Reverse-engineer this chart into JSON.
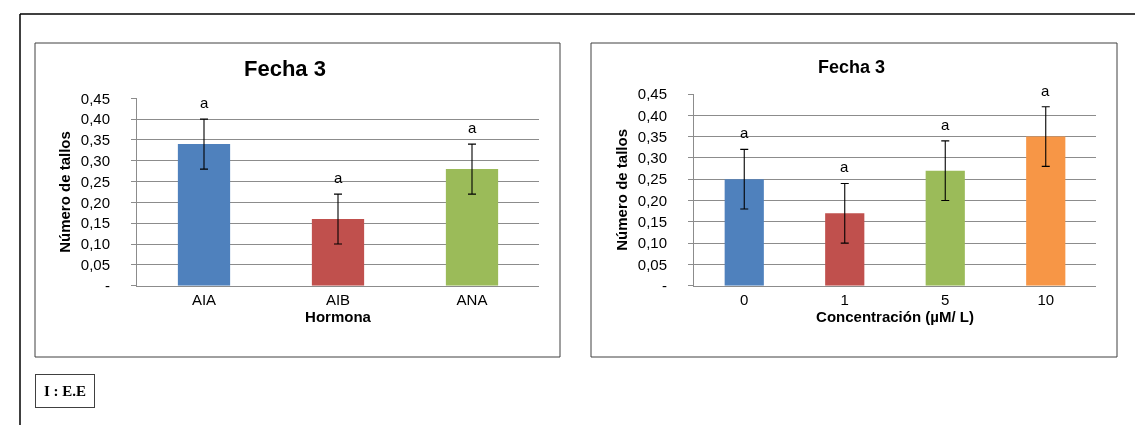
{
  "chart_data": [
    {
      "type": "bar",
      "title": "Fecha 3",
      "xlabel": "Hormona",
      "ylabel": "Número de tallos",
      "categories": [
        "AIA",
        "AIB",
        "ANA"
      ],
      "values": [
        0.34,
        0.16,
        0.28
      ],
      "colors": [
        "#4f81bd",
        "#c0504d",
        "#9bbb59"
      ],
      "errors": [
        0.06,
        0.06,
        0.06
      ],
      "ylim": [
        0,
        0.45
      ],
      "yticks": [
        {
          "value": 0,
          "label": "-"
        },
        {
          "value": 0.05,
          "label": "0,05"
        },
        {
          "value": 0.1,
          "label": "0,10"
        },
        {
          "value": 0.15,
          "label": "0,15"
        },
        {
          "value": 0.2,
          "label": "0,20"
        },
        {
          "value": 0.25,
          "label": "0,25"
        },
        {
          "value": 0.3,
          "label": "0,30"
        },
        {
          "value": 0.35,
          "label": "0,35"
        },
        {
          "value": 0.4,
          "label": "0,40"
        },
        {
          "value": 0.45,
          "label": "0,45"
        }
      ],
      "grid": "y",
      "annotations": [
        {
          "text": "a",
          "x": "AIA",
          "y": 0.4
        },
        {
          "text": "a",
          "x": "AIB",
          "y": 0.22
        },
        {
          "text": "a",
          "x": "ANA",
          "y": 0.34
        },
        "I : E.E"
      ]
    },
    {
      "type": "bar",
      "title": "Fecha 3",
      "xlabel": "Concentración (µM/ L)",
      "ylabel": "Número de tallos",
      "categories": [
        "0",
        "1",
        "5",
        "10"
      ],
      "values": [
        0.25,
        0.17,
        0.27,
        0.35
      ],
      "colors": [
        "#4f81bd",
        "#c0504d",
        "#9bbb59",
        "#f79646"
      ],
      "errors": [
        0.07,
        0.07,
        0.07,
        0.07
      ],
      "ylim": [
        0,
        0.45
      ],
      "yticks": [
        {
          "value": 0,
          "label": "-"
        },
        {
          "value": 0.05,
          "label": "0,05"
        },
        {
          "value": 0.1,
          "label": "0,10"
        },
        {
          "value": 0.15,
          "label": "0,15"
        },
        {
          "value": 0.2,
          "label": "0,20"
        },
        {
          "value": 0.25,
          "label": "0,25"
        },
        {
          "value": 0.3,
          "label": "0,30"
        },
        {
          "value": 0.35,
          "label": "0,35"
        },
        {
          "value": 0.4,
          "label": "0,40"
        },
        {
          "value": 0.45,
          "label": "0,45"
        }
      ],
      "grid": "y",
      "annotations": [
        {
          "text": "a",
          "x": "0",
          "y": 0.32
        },
        {
          "text": "a",
          "x": "1",
          "y": 0.24
        },
        {
          "text": "a",
          "x": "5",
          "y": 0.34
        },
        {
          "text": "a",
          "x": "10",
          "y": 0.42
        }
      ]
    }
  ]
}
